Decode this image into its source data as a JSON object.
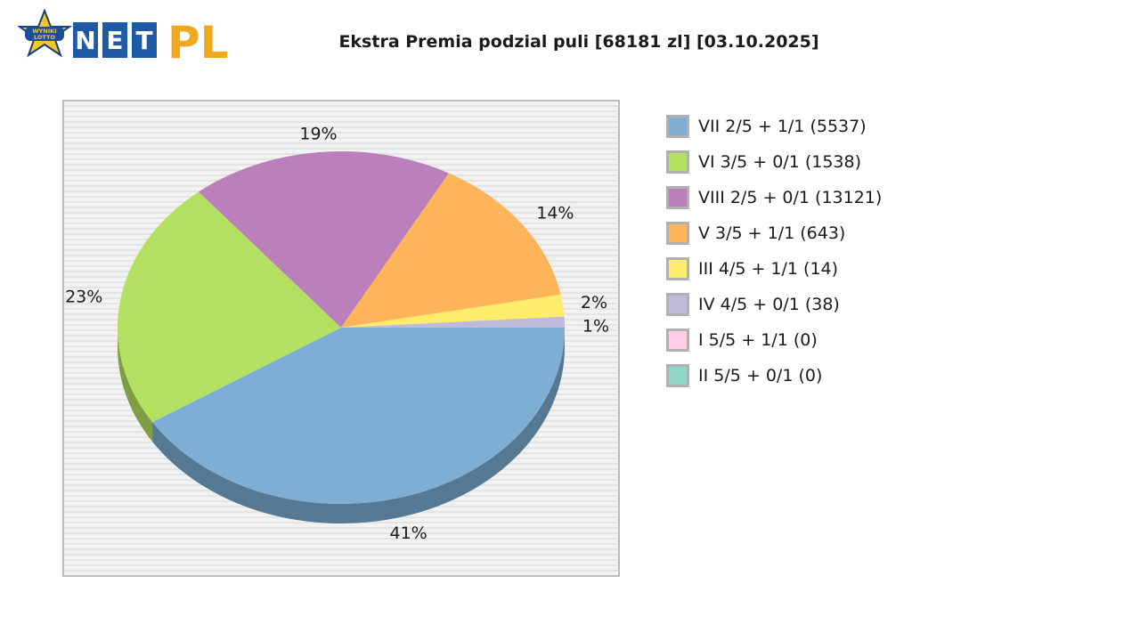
{
  "header": {
    "logo_badge_text_top": "WYNIKI",
    "logo_badge_text_bottom": "LOTTO",
    "logo_letters": [
      "N",
      "E",
      "T"
    ],
    "logo_suffix": "PL"
  },
  "chart_data": {
    "type": "pie",
    "title": "Ekstra Premia podzial puli [68181 zl] [03.10.2025]",
    "legend_position": "right",
    "slices": [
      {
        "label": "VII 2/5 + 1/1 (5537)",
        "percent_label": "41%",
        "value": 41,
        "color": "#7eaed4",
        "side_color": "#557893"
      },
      {
        "label": "VI 3/5 + 0/1 (1538)",
        "percent_label": "23%",
        "value": 23,
        "color": "#b3e060",
        "side_color": "#7e9e43"
      },
      {
        "label": "VIII 2/5 + 0/1 (13121)",
        "percent_label": "19%",
        "value": 19,
        "color": "#bb7fbb",
        "side_color": "#835983"
      },
      {
        "label": "V 3/5 + 1/1 (643)",
        "percent_label": "14%",
        "value": 14,
        "color": "#feb55a",
        "side_color": "#b37f3f"
      },
      {
        "label": "III 4/5 + 1/1 (14)",
        "percent_label": "2%",
        "value": 2,
        "color": "#feed6a",
        "side_color": "#b3a64a"
      },
      {
        "label": "IV 4/5 + 0/1 (38)",
        "percent_label": "1%",
        "value": 1,
        "color": "#bfbadb",
        "side_color": "#86839a"
      },
      {
        "label": "I 5/5 + 1/1 (0)",
        "percent_label": "",
        "value": 0,
        "color": "#ffcde5",
        "side_color": "#b390a1"
      },
      {
        "label": "II 5/5 + 0/1 (0)",
        "percent_label": "",
        "value": 0,
        "color": "#8fd6c8",
        "side_color": "#65978d"
      }
    ]
  }
}
